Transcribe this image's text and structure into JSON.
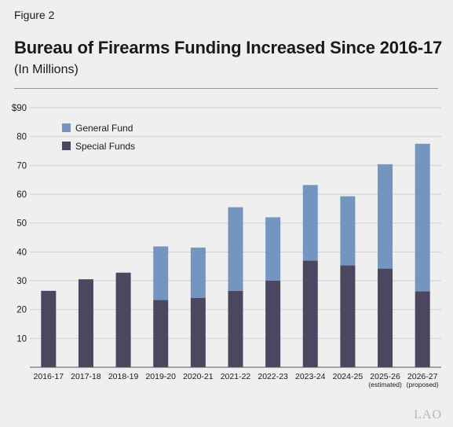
{
  "figure_label": "Figure 2",
  "title": "Bureau of Firearms Funding Increased Since 2016-17",
  "subtitle": "(In Millions)",
  "logo_text": "LAO",
  "colors": {
    "general_fund": "#7395bf",
    "special_funds": "#4a475f",
    "grid": "#cfcfd4",
    "background": "#efeff0"
  },
  "chart_data": {
    "type": "bar",
    "stacked": true,
    "categories": [
      "2016-17",
      "2017-18",
      "2018-19",
      "2019-20",
      "2020-21",
      "2021-22",
      "2022-23",
      "2023-24",
      "2024-25",
      "2025-26",
      "2026-27"
    ],
    "category_sublabels": [
      "",
      "",
      "",
      "",
      "",
      "",
      "",
      "",
      "",
      "(estimated)",
      "(proposed)"
    ],
    "series": [
      {
        "name": "Special Funds",
        "values": [
          26.5,
          30.5,
          32.8,
          23.3,
          24,
          26.5,
          30,
          37,
          35.3,
          34.2,
          26.3
        ]
      },
      {
        "name": "General Fund",
        "values": [
          0,
          0,
          0,
          18.6,
          17.5,
          29,
          22,
          26.2,
          24,
          36.2,
          51.2
        ]
      }
    ],
    "yticks": [
      "10",
      "20",
      "30",
      "40",
      "50",
      "60",
      "70",
      "80",
      "$90"
    ],
    "ylim": [
      0,
      90
    ],
    "grid": true,
    "legend_position": "top-left"
  }
}
